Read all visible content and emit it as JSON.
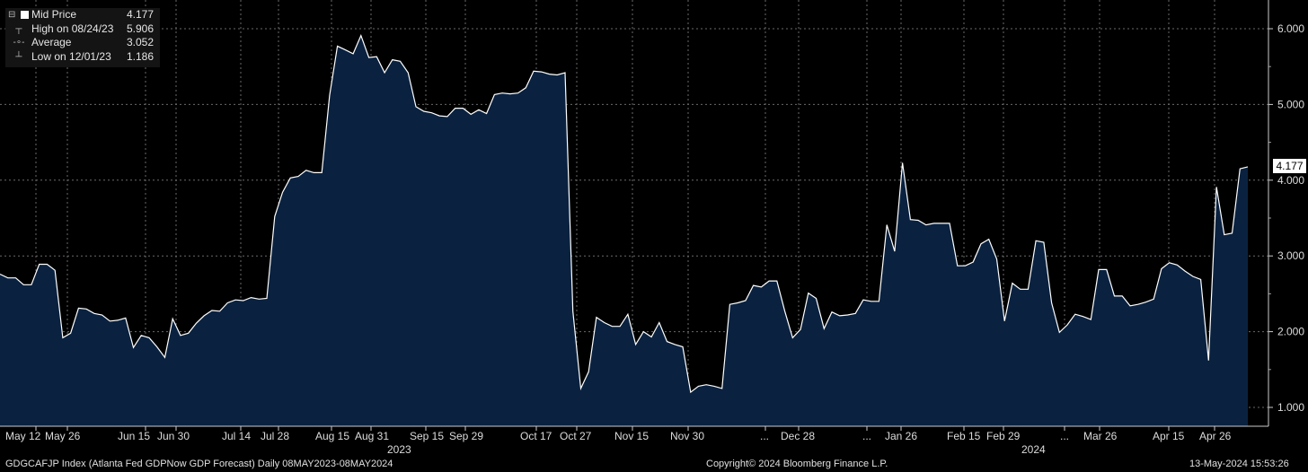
{
  "legend": {
    "mid_label": "Mid Price",
    "mid_value": "4.177",
    "high_label": "High on 08/24/23",
    "high_value": "5.906",
    "avg_label": "Average",
    "avg_value": "3.052",
    "low_label": "Low on 12/01/23",
    "low_value": "1.186"
  },
  "last_value_tag": "4.177",
  "footer": {
    "left": "GDGCAFJP Index (Atlanta Fed GDPNow GDP Forecast)  Daily 08MAY2023-08MAY2024",
    "center": "Copyright© 2024 Bloomberg Finance L.P.",
    "right": "13-May-2024 15:53:26"
  },
  "colors": {
    "background": "#000000",
    "area_fill": "#0a2240",
    "line": "#ffffff",
    "grid": "#6a6a6a"
  },
  "chart_data": {
    "type": "area",
    "title": "",
    "xlabel": "",
    "ylabel": "",
    "ylim": [
      0.75,
      6.5
    ],
    "y_ticks": [
      "1.000",
      "2.000",
      "3.000",
      "4.000",
      "5.000",
      "6.000"
    ],
    "x_tick_labels": [
      "May 12",
      "May 26",
      "Jun 15",
      "Jun 30",
      "Jul 14",
      "Jul 28",
      "Aug 15",
      "Aug 31",
      "Sep 15",
      "Sep 29",
      "Oct 17",
      "Oct 27",
      "Nov 15",
      "Nov 30",
      "...",
      "Dec 28",
      "...",
      "Jan 26",
      "Feb 15",
      "Feb 29",
      "...",
      "Mar 26",
      "Apr 15",
      "Apr 26"
    ],
    "year_labels": [
      "2023",
      "2024"
    ],
    "grid": true,
    "series": [
      {
        "values": [
          2.76,
          2.71,
          2.71,
          2.62,
          2.62,
          2.89,
          2.89,
          2.81,
          1.92,
          1.98,
          2.31,
          2.3,
          2.24,
          2.22,
          2.14,
          2.15,
          2.18,
          1.79,
          1.95,
          1.92,
          1.8,
          1.66,
          2.17,
          1.95,
          1.98,
          2.11,
          2.21,
          2.28,
          2.27,
          2.38,
          2.42,
          2.41,
          2.45,
          2.43,
          2.44,
          3.52,
          3.84,
          4.03,
          4.05,
          4.13,
          4.1,
          4.1,
          5.12,
          5.77,
          5.72,
          5.67,
          5.91,
          5.62,
          5.63,
          5.42,
          5.59,
          5.57,
          5.42,
          4.97,
          4.91,
          4.89,
          4.85,
          4.84,
          4.95,
          4.95,
          4.87,
          4.93,
          4.88,
          5.13,
          5.15,
          5.14,
          5.15,
          5.22,
          5.44,
          5.43,
          5.4,
          5.39,
          5.42,
          2.27,
          1.25,
          1.47,
          2.19,
          2.12,
          2.07,
          2.07,
          2.23,
          1.83,
          2.0,
          1.93,
          2.12,
          1.87,
          1.83,
          1.8,
          1.2,
          1.28,
          1.3,
          1.28,
          1.25,
          2.36,
          2.38,
          2.41,
          2.61,
          2.59,
          2.67,
          2.67,
          2.27,
          1.92,
          2.03,
          2.51,
          2.44,
          2.04,
          2.26,
          2.21,
          2.22,
          2.24,
          2.42,
          2.4,
          2.4,
          3.41,
          3.06,
          4.23,
          3.48,
          3.47,
          3.41,
          3.43,
          3.43,
          3.43,
          2.87,
          2.87,
          2.92,
          3.16,
          3.22,
          2.96,
          2.14,
          2.64,
          2.56,
          2.56,
          3.2,
          3.18,
          2.38,
          1.99,
          2.09,
          2.23,
          2.2,
          2.16,
          2.82,
          2.82,
          2.47,
          2.47,
          2.34,
          2.36,
          2.39,
          2.43,
          2.83,
          2.91,
          2.88,
          2.8,
          2.73,
          2.69,
          1.62,
          3.91,
          3.28,
          3.3,
          4.15,
          4.177
        ]
      }
    ]
  }
}
